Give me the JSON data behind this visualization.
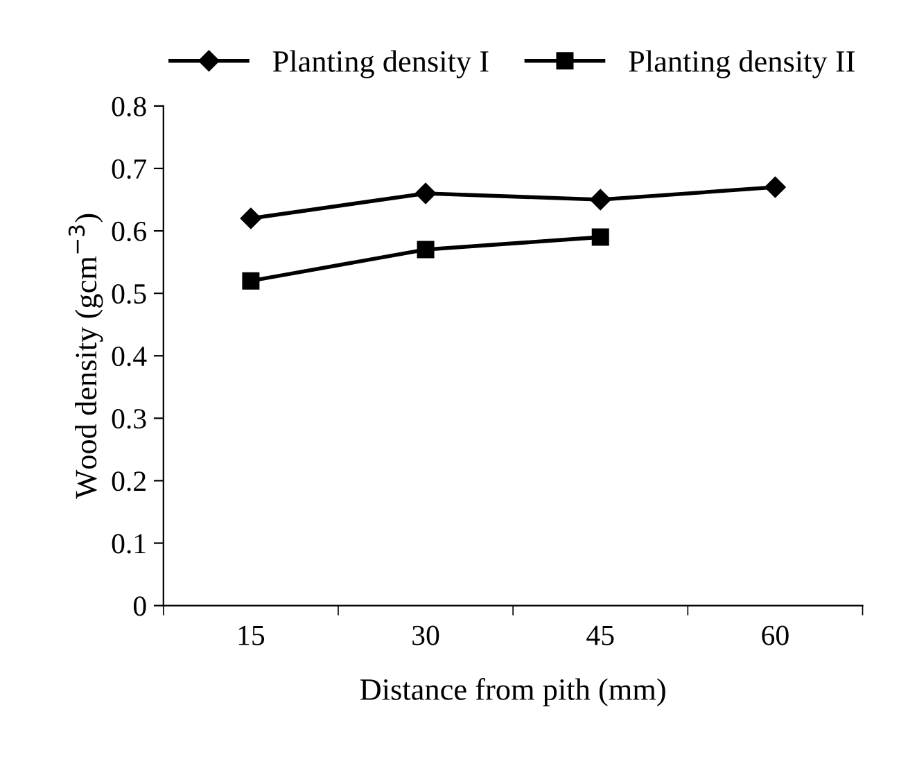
{
  "chart_data": {
    "type": "line",
    "xlabel": "Distance from pith (mm)",
    "ylabel": "Wood density (gcm$^{−3}$)",
    "categories": [
      "15",
      "30",
      "45",
      "60"
    ],
    "series": [
      {
        "name": "Planting density I",
        "color": "#000000",
        "marker": "diamond",
        "values": [
          0.62,
          0.66,
          0.65,
          0.67
        ]
      },
      {
        "name": "Planting density II",
        "color": "#000000",
        "marker": "square",
        "values": [
          0.52,
          0.57,
          0.59,
          null
        ]
      }
    ],
    "ylim": [
      0,
      0.8
    ],
    "yticks": [
      0,
      0.1,
      0.2,
      0.3,
      0.4,
      0.5,
      0.6,
      0.7,
      0.8
    ],
    "grid": false,
    "legend": "top",
    "line_style": "solid"
  }
}
